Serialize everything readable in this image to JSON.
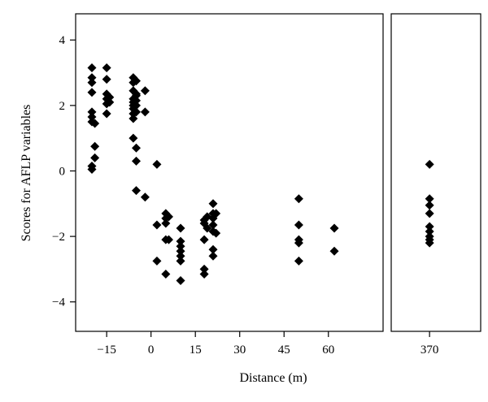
{
  "chart_data": {
    "type": "scatter",
    "xlabel": "Distance (m)",
    "ylabel": "Scores for AFLP variables",
    "ylim": [
      -4.9,
      4.8
    ],
    "yticks": [
      -4,
      -2,
      0,
      2,
      4
    ],
    "ytick_labels": [
      "−4",
      "−2",
      "0",
      "2",
      "4"
    ],
    "grid": false,
    "marker": "diamond",
    "marker_color": "#000000",
    "panels": [
      {
        "xlim": [
          -25.5,
          78.5
        ],
        "xticks": [
          -15,
          0,
          15,
          30,
          45,
          60
        ],
        "xtick_labels": [
          "−15",
          "0",
          "15",
          "30",
          "45",
          "60"
        ],
        "points": [
          [
            -20,
            3.15
          ],
          [
            -20,
            2.85
          ],
          [
            -20,
            2.7
          ],
          [
            -20,
            2.4
          ],
          [
            -20,
            1.8
          ],
          [
            -20,
            1.65
          ],
          [
            -20,
            1.5
          ],
          [
            -20,
            0.15
          ],
          [
            -20,
            0.05
          ],
          [
            -19,
            1.45
          ],
          [
            -19,
            0.75
          ],
          [
            -19,
            0.4
          ],
          [
            -15,
            3.15
          ],
          [
            -15,
            2.8
          ],
          [
            -15,
            2.35
          ],
          [
            -15,
            2.2
          ],
          [
            -15,
            2.05
          ],
          [
            -15,
            1.75
          ],
          [
            -14,
            2.25
          ],
          [
            -14,
            2.1
          ],
          [
            -6,
            2.85
          ],
          [
            -6,
            2.7
          ],
          [
            -6,
            2.45
          ],
          [
            -6,
            2.2
          ],
          [
            -6,
            2.1
          ],
          [
            -6,
            2.0
          ],
          [
            -6,
            1.9
          ],
          [
            -6,
            1.75
          ],
          [
            -6,
            1.6
          ],
          [
            -6,
            1.0
          ],
          [
            -5,
            2.75
          ],
          [
            -5,
            2.35
          ],
          [
            -5,
            2.3
          ],
          [
            -5,
            2.15
          ],
          [
            -5,
            2.0
          ],
          [
            -5,
            1.8
          ],
          [
            -5,
            0.7
          ],
          [
            -5,
            0.3
          ],
          [
            -5,
            -0.6
          ],
          [
            -2,
            2.45
          ],
          [
            -2,
            1.8
          ],
          [
            -2,
            -0.8
          ],
          [
            2,
            0.2
          ],
          [
            2,
            -1.65
          ],
          [
            2,
            -2.75
          ],
          [
            5,
            -1.3
          ],
          [
            5,
            -1.45
          ],
          [
            5,
            -1.6
          ],
          [
            5,
            -2.1
          ],
          [
            5,
            -3.15
          ],
          [
            6,
            -1.4
          ],
          [
            6,
            -2.1
          ],
          [
            10,
            -1.75
          ],
          [
            10,
            -2.15
          ],
          [
            10,
            -2.3
          ],
          [
            10,
            -2.45
          ],
          [
            10,
            -2.6
          ],
          [
            10,
            -2.75
          ],
          [
            10,
            -3.35
          ],
          [
            18,
            -1.5
          ],
          [
            18,
            -1.6
          ],
          [
            18,
            -2.1
          ],
          [
            18,
            -3.0
          ],
          [
            18,
            -3.15
          ],
          [
            19,
            -1.4
          ],
          [
            19,
            -1.75
          ],
          [
            21,
            -1.0
          ],
          [
            21,
            -1.3
          ],
          [
            21,
            -1.45
          ],
          [
            21,
            -1.65
          ],
          [
            21,
            -1.85
          ],
          [
            21,
            -2.4
          ],
          [
            21,
            -2.6
          ],
          [
            22,
            -1.3
          ],
          [
            22,
            -1.9
          ],
          [
            50,
            -0.85
          ],
          [
            50,
            -1.65
          ],
          [
            50,
            -2.1
          ],
          [
            50,
            -2.2
          ],
          [
            50,
            -2.75
          ],
          [
            62,
            -1.75
          ],
          [
            62,
            -2.45
          ]
        ]
      },
      {
        "xlim": [
          355,
          390
        ],
        "xticks": [
          370
        ],
        "xtick_labels": [
          "370"
        ],
        "points": [
          [
            370,
            0.2
          ],
          [
            370,
            -0.85
          ],
          [
            370,
            -1.05
          ],
          [
            370,
            -1.3
          ],
          [
            370,
            -1.7
          ],
          [
            370,
            -1.85
          ],
          [
            370,
            -2.0
          ],
          [
            370,
            -2.1
          ],
          [
            370,
            -2.2
          ]
        ]
      }
    ]
  }
}
